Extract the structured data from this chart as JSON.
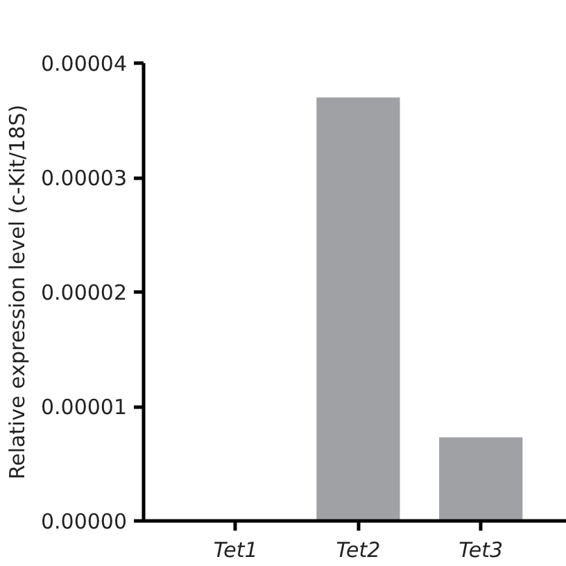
{
  "chart_data": {
    "type": "bar",
    "ylabel": "Relative expression level (c-Kit/18S)",
    "categories": [
      "Tet1",
      "Tet2",
      "Tet3"
    ],
    "values": [
      0,
      3.7e-05,
      7.3e-06
    ],
    "color": "#a0a1a5",
    "ylim": [
      0,
      4e-05
    ],
    "yticks": [
      {
        "value": 0,
        "label": "0.00000"
      },
      {
        "value": 1e-05,
        "label": "0.00001"
      },
      {
        "value": 2e-05,
        "label": "0.00002"
      },
      {
        "value": 3e-05,
        "label": "0.00003"
      },
      {
        "value": 4e-05,
        "label": "0.00004"
      }
    ],
    "grid": false
  }
}
